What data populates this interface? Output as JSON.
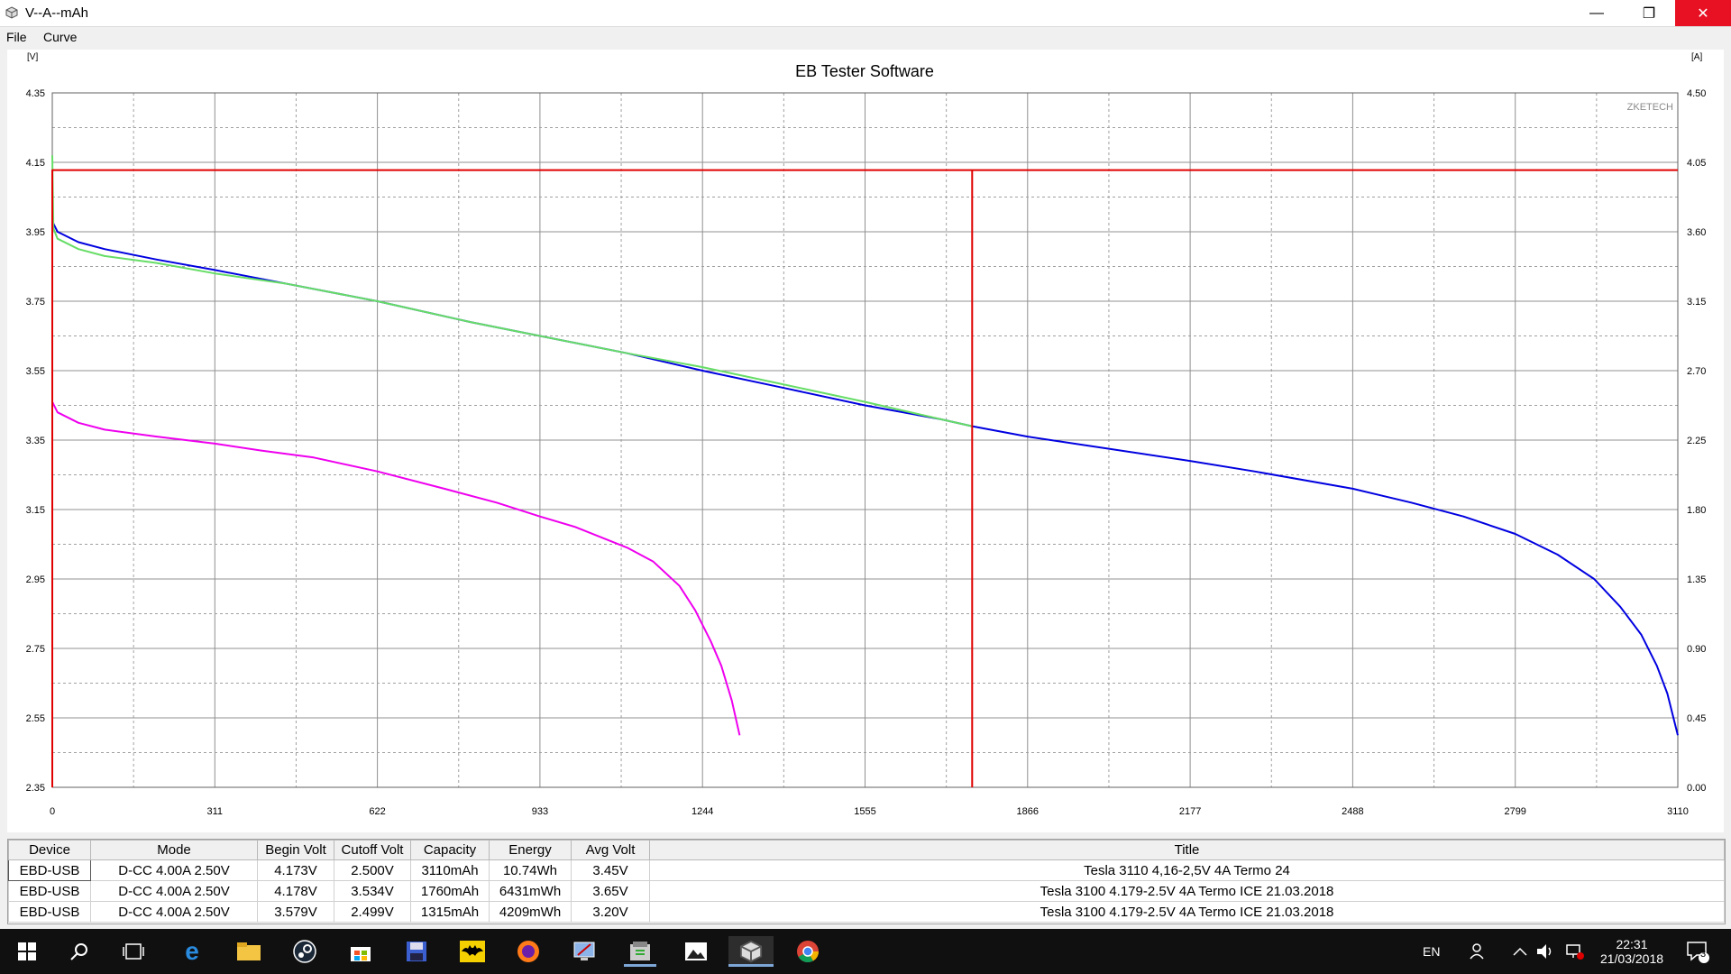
{
  "window": {
    "title": "V--A--mAh",
    "minimize": "—",
    "restore": "❐",
    "close": "✕"
  },
  "menu": [
    "File",
    "Curve"
  ],
  "chart_data": {
    "type": "line",
    "title": "EB Tester Software",
    "watermark": "ZKETECH",
    "left_unit": "[V]",
    "right_unit": "[A]",
    "xlim": [
      0,
      3110
    ],
    "x_ticks": [
      "0",
      "311",
      "622",
      "933",
      "1244",
      "1555",
      "1866",
      "2177",
      "2488",
      "2799",
      "3110"
    ],
    "ylim_left": [
      2.35,
      4.35
    ],
    "y_ticks_left": [
      "4.35",
      "4.15",
      "3.95",
      "3.75",
      "3.55",
      "3.35",
      "3.15",
      "2.95",
      "2.75",
      "2.55",
      "2.35"
    ],
    "ylim_right": [
      0.0,
      4.5
    ],
    "y_ticks_right": [
      "4.50",
      "4.05",
      "3.60",
      "3.15",
      "2.70",
      "2.25",
      "1.80",
      "1.35",
      "0.90",
      "0.45",
      "0.00"
    ],
    "series": [
      {
        "axis": "left",
        "color": "#0000e0",
        "x": [
          0,
          10,
          50,
          100,
          200,
          311,
          450,
          622,
          800,
          933,
          1100,
          1244,
          1400,
          1555,
          1700,
          1760,
          1866,
          2000,
          2177,
          2300,
          2488,
          2600,
          2700,
          2799,
          2880,
          2950,
          3000,
          3040,
          3070,
          3090,
          3110
        ],
        "y": [
          3.98,
          3.95,
          3.92,
          3.9,
          3.87,
          3.84,
          3.8,
          3.75,
          3.69,
          3.65,
          3.6,
          3.55,
          3.5,
          3.45,
          3.41,
          3.39,
          3.36,
          3.33,
          3.29,
          3.26,
          3.21,
          3.17,
          3.13,
          3.08,
          3.02,
          2.95,
          2.87,
          2.79,
          2.7,
          2.62,
          2.5
        ]
      },
      {
        "axis": "left",
        "color": "#66dd66",
        "x": [
          0,
          2,
          10,
          50,
          100,
          200,
          311,
          450,
          622,
          800,
          933,
          1100,
          1244,
          1400,
          1555,
          1700,
          1760
        ],
        "y": [
          4.17,
          3.96,
          3.93,
          3.9,
          3.88,
          3.86,
          3.83,
          3.8,
          3.75,
          3.69,
          3.65,
          3.6,
          3.56,
          3.51,
          3.46,
          3.41,
          3.39
        ]
      },
      {
        "axis": "left",
        "color": "#ee00ee",
        "x": [
          0,
          10,
          50,
          100,
          200,
          311,
          400,
          500,
          622,
          750,
          850,
          933,
          1000,
          1100,
          1150,
          1200,
          1230,
          1260,
          1280,
          1300,
          1315
        ],
        "y": [
          3.46,
          3.43,
          3.4,
          3.38,
          3.36,
          3.34,
          3.32,
          3.3,
          3.26,
          3.21,
          3.17,
          3.13,
          3.1,
          3.04,
          3.0,
          2.93,
          2.86,
          2.77,
          2.7,
          2.6,
          2.5
        ]
      },
      {
        "axis": "right",
        "color": "#e00000",
        "x": [
          0,
          0,
          3,
          3110
        ],
        "y": [
          0.0,
          4.0,
          4.0,
          4.0
        ]
      },
      {
        "axis": "right",
        "color": "#e00000",
        "x": [
          1760,
          1760
        ],
        "y": [
          4.0,
          0.0
        ]
      }
    ]
  },
  "table": {
    "headers": [
      "Device",
      "Mode",
      "Begin Volt",
      "Cutoff Volt",
      "Capacity",
      "Energy",
      "Avg Volt",
      "Title"
    ],
    "rows": [
      [
        "EBD-USB",
        "D-CC  4.00A  2.50V",
        "4.173V",
        "2.500V",
        "3110mAh",
        "10.74Wh",
        "3.45V",
        "Tesla  3110 4,16-2,5V 4A Termo 24"
      ],
      [
        "EBD-USB",
        "D-CC  4.00A  2.50V",
        "4.178V",
        "3.534V",
        "1760mAh",
        "6431mWh",
        "3.65V",
        "Tesla 3100 4.179-2.5V 4A Termo ICE 21.03.2018"
      ],
      [
        "EBD-USB",
        "D-CC  4.00A  2.50V",
        "3.579V",
        "2.499V",
        "1315mAh",
        "4209mWh",
        "3.20V",
        "Tesla 3100 4.179-2.5V 4A Termo ICE 21.03.2018"
      ]
    ]
  },
  "taskbar": {
    "lang": "EN",
    "time": "22:31",
    "date": "21/03/2018",
    "notifications": "3"
  }
}
